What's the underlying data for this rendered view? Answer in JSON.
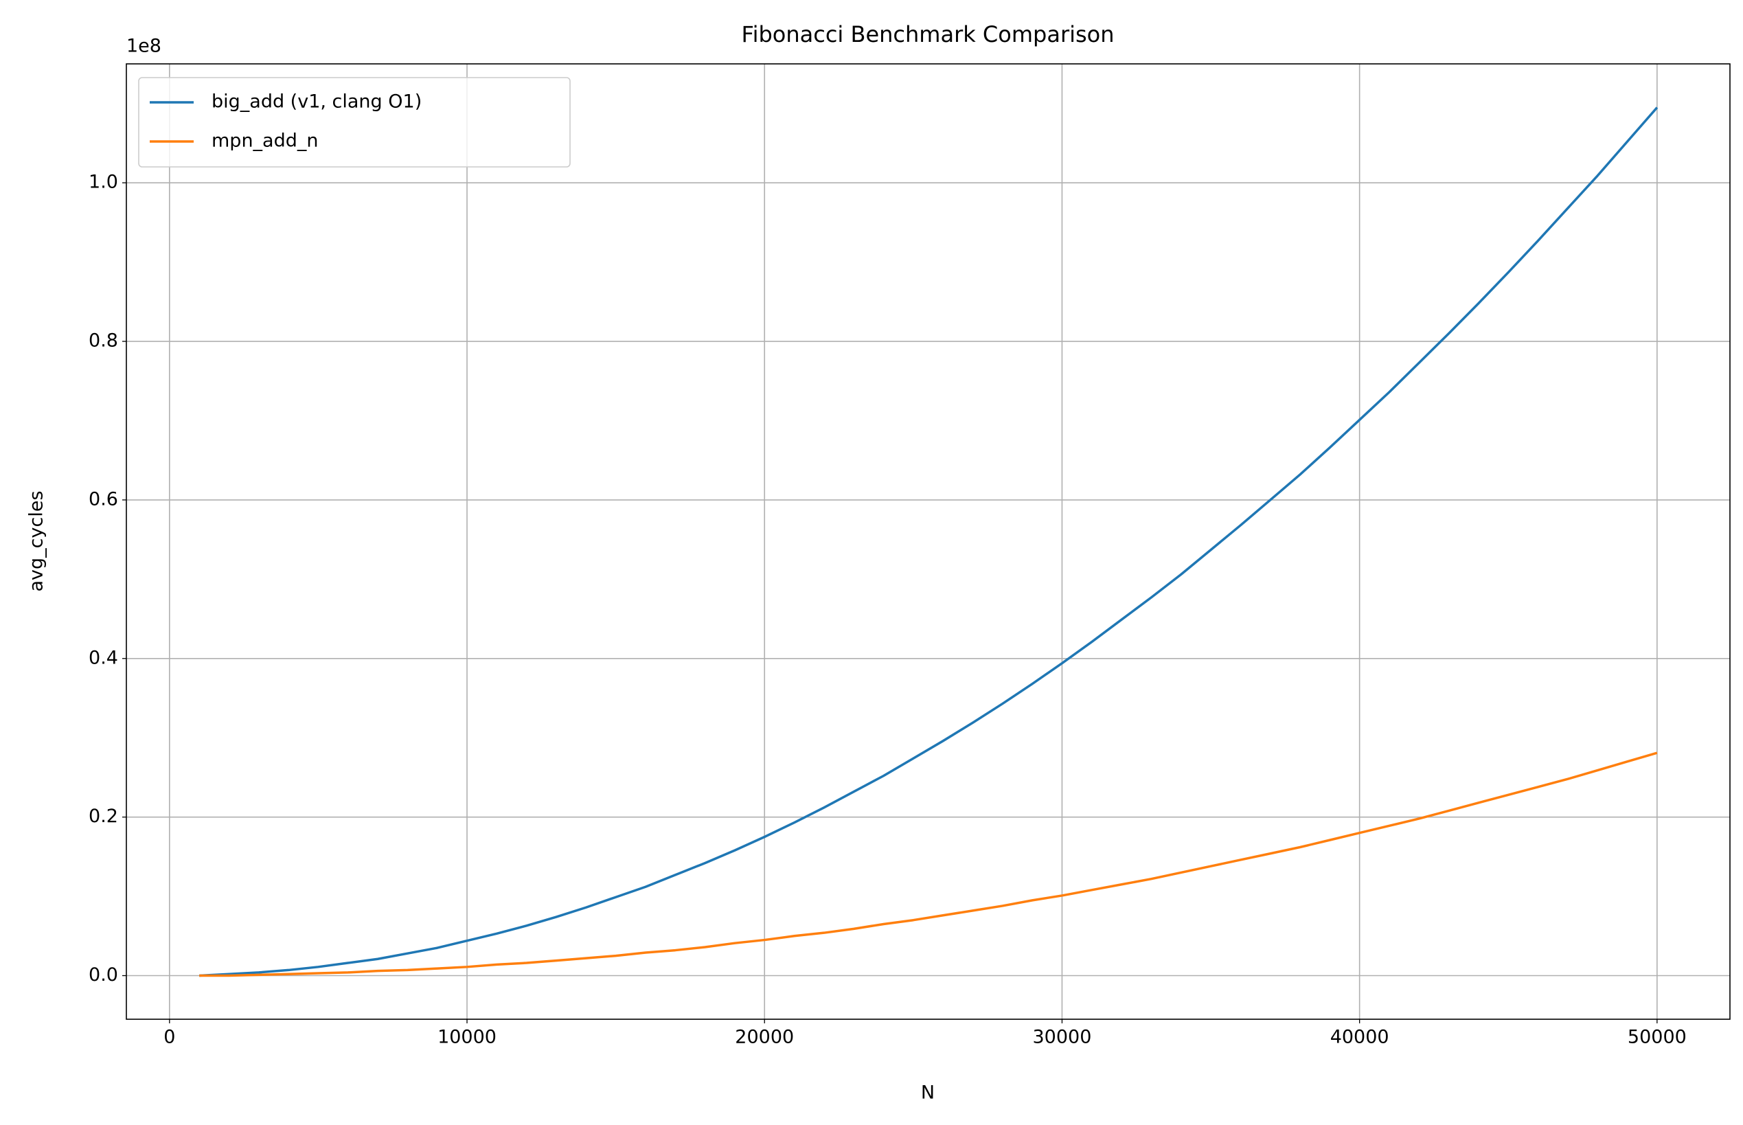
{
  "chart_data": {
    "type": "line",
    "title": "Fibonacci Benchmark Comparison",
    "xlabel": "N",
    "ylabel": "avg_cycles",
    "y_offset_label": "1e8",
    "x": [
      1000,
      2000,
      3000,
      4000,
      5000,
      6000,
      7000,
      8000,
      9000,
      10000,
      11000,
      12000,
      13000,
      14000,
      15000,
      16000,
      17000,
      18000,
      19000,
      20000,
      21000,
      22000,
      23000,
      24000,
      25000,
      26000,
      27000,
      28000,
      29000,
      30000,
      31000,
      32000,
      33000,
      34000,
      35000,
      36000,
      37000,
      38000,
      39000,
      40000,
      41000,
      42000,
      43000,
      44000,
      45000,
      46000,
      47000,
      48000,
      49000,
      50000
    ],
    "series": [
      {
        "name": "big_add (v1, clang O1)",
        "color": "#1f77b4",
        "values": [
          0.0,
          0.002,
          0.004,
          0.007,
          0.011,
          0.016,
          0.021,
          0.028,
          0.035,
          0.044,
          0.053,
          0.063,
          0.074,
          0.086,
          0.099,
          0.112,
          0.127,
          0.142,
          0.158,
          0.175,
          0.193,
          0.212,
          0.232,
          0.252,
          0.274,
          0.296,
          0.319,
          0.343,
          0.368,
          0.394,
          0.421,
          0.449,
          0.477,
          0.506,
          0.537,
          0.568,
          0.6,
          0.632,
          0.666,
          0.701,
          0.736,
          0.773,
          0.81,
          0.848,
          0.887,
          0.927,
          0.968,
          1.009,
          1.052,
          1.095
        ]
      },
      {
        "name": "mpn_add_n",
        "color": "#ff7f0e",
        "values": [
          0.0,
          0.0,
          0.001,
          0.002,
          0.003,
          0.004,
          0.006,
          0.007,
          0.009,
          0.011,
          0.014,
          0.016,
          0.019,
          0.022,
          0.025,
          0.029,
          0.032,
          0.036,
          0.041,
          0.045,
          0.05,
          0.054,
          0.059,
          0.065,
          0.07,
          0.076,
          0.082,
          0.088,
          0.095,
          0.101,
          0.108,
          0.115,
          0.122,
          0.13,
          0.138,
          0.146,
          0.154,
          0.162,
          0.171,
          0.18,
          0.189,
          0.198,
          0.208,
          0.218,
          0.228,
          0.238,
          0.248,
          0.259,
          0.27,
          0.281
        ]
      }
    ],
    "xlim": [
      -1450,
      52450
    ],
    "xticks": [
      0,
      10000,
      20000,
      30000,
      40000,
      50000
    ],
    "ylim": [
      -0.055,
      1.15
    ],
    "yticks": [
      {
        "value": 0,
        "label": "0.0"
      },
      0.2,
      0.4,
      0.6,
      0.8,
      {
        "value": 1,
        "label": "1.0"
      }
    ],
    "grid": true,
    "legend": "upper left"
  }
}
